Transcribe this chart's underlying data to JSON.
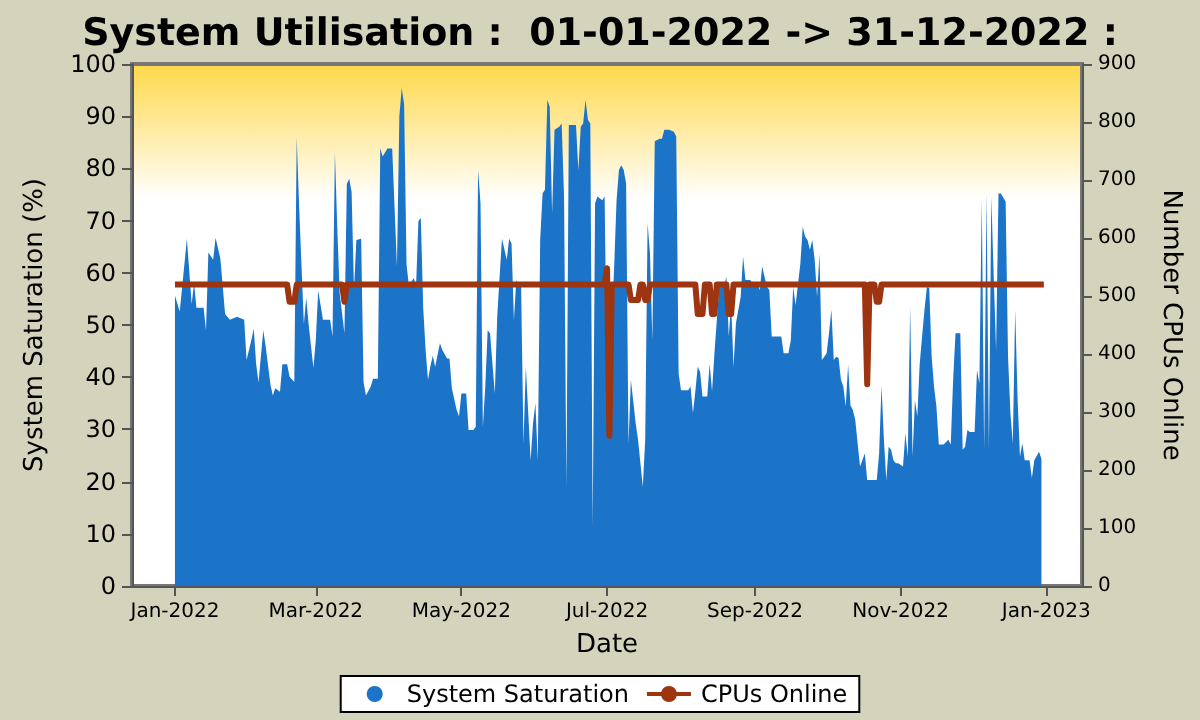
{
  "chart_data": {
    "type": "area",
    "title": "System Utilisation :  01-01-2022 -> 31-12-2022 :",
    "xlabel": "Date",
    "ylabel": "System Saturation (%)",
    "y2label": "Number CPUs Online",
    "xlim": [
      "2021-12-14",
      "2023-01-16"
    ],
    "xticks": [
      {
        "value": "2022-01-01",
        "label": "Jan-2022"
      },
      {
        "value": "2022-03-01",
        "label": "Mar-2022"
      },
      {
        "value": "2022-05-01",
        "label": "May-2022"
      },
      {
        "value": "2022-07-01",
        "label": "Jul-2022"
      },
      {
        "value": "2022-09-01",
        "label": "Sep-2022"
      },
      {
        "value": "2022-11-01",
        "label": "Nov-2022"
      },
      {
        "value": "2023-01-01",
        "label": "Jan-2023"
      }
    ],
    "ylim": [
      0,
      100
    ],
    "yticks": [
      0,
      10,
      20,
      30,
      40,
      50,
      60,
      70,
      80,
      90,
      100
    ],
    "y2lim": [
      0,
      900
    ],
    "y2ticks": [
      0,
      100,
      200,
      300,
      400,
      500,
      600,
      700,
      800,
      900
    ],
    "grid": false,
    "legend": "bottom",
    "marker": "none",
    "line_style": "solid",
    "series": [
      {
        "name": "System Saturation",
        "color": "#1b74c8",
        "x": [
          "2022-01-01",
          "2022-01-03",
          "2022-01-06",
          "2022-01-08",
          "2022-01-09",
          "2022-01-10",
          "2022-01-13",
          "2022-01-14",
          "2022-01-15",
          "2022-01-17",
          "2022-01-18",
          "2022-01-20",
          "2022-01-22",
          "2022-01-24",
          "2022-01-27",
          "2022-01-30",
          "2022-01-31",
          "2022-02-02",
          "2022-02-03",
          "2022-02-04",
          "2022-02-05",
          "2022-02-07",
          "2022-02-08",
          "2022-02-10",
          "2022-02-11",
          "2022-02-12",
          "2022-02-14",
          "2022-02-15",
          "2022-02-17",
          "2022-02-18",
          "2022-02-20",
          "2022-02-21",
          "2022-02-22",
          "2022-02-24",
          "2022-02-25",
          "2022-02-26",
          "2022-02-28",
          "2022-03-01",
          "2022-03-02",
          "2022-03-04",
          "2022-03-07",
          "2022-03-08",
          "2022-03-09",
          "2022-03-10",
          "2022-03-11",
          "2022-03-13",
          "2022-03-14",
          "2022-03-15",
          "2022-03-16",
          "2022-03-17",
          "2022-03-18",
          "2022-03-20",
          "2022-03-21",
          "2022-03-22",
          "2022-03-24",
          "2022-03-25",
          "2022-03-27",
          "2022-03-28",
          "2022-03-29",
          "2022-03-31",
          "2022-04-02",
          "2022-04-04",
          "2022-04-05",
          "2022-04-06",
          "2022-04-07",
          "2022-04-08",
          "2022-04-09",
          "2022-04-11",
          "2022-04-12",
          "2022-04-13",
          "2022-04-14",
          "2022-04-15",
          "2022-04-16",
          "2022-04-17",
          "2022-04-18",
          "2022-04-19",
          "2022-04-20",
          "2022-04-22",
          "2022-04-23",
          "2022-04-25",
          "2022-04-26",
          "2022-04-27",
          "2022-04-29",
          "2022-04-30",
          "2022-05-01",
          "2022-05-03",
          "2022-05-04",
          "2022-05-06",
          "2022-05-07",
          "2022-05-08",
          "2022-05-09",
          "2022-05-10",
          "2022-05-11",
          "2022-05-12",
          "2022-05-13",
          "2022-05-15",
          "2022-05-16",
          "2022-05-17",
          "2022-05-18",
          "2022-05-20",
          "2022-05-21",
          "2022-05-22",
          "2022-05-23",
          "2022-05-24",
          "2022-05-25",
          "2022-05-26",
          "2022-05-27",
          "2022-05-28",
          "2022-05-30",
          "2022-05-31",
          "2022-06-01",
          "2022-06-02",
          "2022-06-03",
          "2022-06-04",
          "2022-06-05",
          "2022-06-06",
          "2022-06-07",
          "2022-06-08",
          "2022-06-09",
          "2022-06-11",
          "2022-06-12",
          "2022-06-13",
          "2022-06-14",
          "2022-06-15",
          "2022-06-18",
          "2022-06-19",
          "2022-06-20",
          "2022-06-21",
          "2022-06-22",
          "2022-06-23",
          "2022-06-24",
          "2022-06-25",
          "2022-06-26",
          "2022-06-27",
          "2022-06-29",
          "2022-06-30",
          "2022-07-01",
          "2022-07-02",
          "2022-07-04",
          "2022-07-05",
          "2022-07-06",
          "2022-07-07",
          "2022-07-08",
          "2022-07-09",
          "2022-07-10",
          "2022-07-11",
          "2022-07-13",
          "2022-07-14",
          "2022-07-15",
          "2022-07-16",
          "2022-07-17",
          "2022-07-18",
          "2022-07-19",
          "2022-07-20",
          "2022-07-21",
          "2022-07-23",
          "2022-07-24",
          "2022-07-25",
          "2022-07-27",
          "2022-07-29",
          "2022-07-30",
          "2022-07-31",
          "2022-08-01",
          "2022-08-03",
          "2022-08-04",
          "2022-08-05",
          "2022-08-06",
          "2022-08-07",
          "2022-08-08",
          "2022-08-09",
          "2022-08-10",
          "2022-08-12",
          "2022-08-13",
          "2022-08-14",
          "2022-08-15",
          "2022-08-17",
          "2022-08-19",
          "2022-08-20",
          "2022-08-21",
          "2022-08-22",
          "2022-08-23",
          "2022-08-24",
          "2022-08-26",
          "2022-08-27",
          "2022-08-28",
          "2022-08-29",
          "2022-08-30",
          "2022-09-01",
          "2022-09-02",
          "2022-09-03",
          "2022-09-04",
          "2022-09-06",
          "2022-09-07",
          "2022-09-08",
          "2022-09-09",
          "2022-09-12",
          "2022-09-13",
          "2022-09-15",
          "2022-09-16",
          "2022-09-17",
          "2022-09-18",
          "2022-09-20",
          "2022-09-21",
          "2022-09-22",
          "2022-09-23",
          "2022-09-24",
          "2022-09-25",
          "2022-09-26",
          "2022-09-27",
          "2022-09-28",
          "2022-09-29",
          "2022-09-30",
          "2022-10-01",
          "2022-10-02",
          "2022-10-03",
          "2022-10-04",
          "2022-10-05",
          "2022-10-06",
          "2022-10-07",
          "2022-10-08",
          "2022-10-09",
          "2022-10-10",
          "2022-10-11",
          "2022-10-12",
          "2022-10-13",
          "2022-10-14",
          "2022-10-15",
          "2022-10-17",
          "2022-10-18",
          "2022-10-20",
          "2022-10-22",
          "2022-10-23",
          "2022-10-24",
          "2022-10-25",
          "2022-10-26",
          "2022-10-27",
          "2022-10-28",
          "2022-10-29",
          "2022-10-30",
          "2022-10-31",
          "2022-11-02",
          "2022-11-03",
          "2022-11-04",
          "2022-11-05",
          "2022-11-06",
          "2022-11-07",
          "2022-11-08",
          "2022-11-09",
          "2022-11-10",
          "2022-11-11",
          "2022-11-12",
          "2022-11-13",
          "2022-11-14",
          "2022-11-15",
          "2022-11-16",
          "2022-11-17",
          "2022-11-19",
          "2022-11-21",
          "2022-11-22",
          "2022-11-23",
          "2022-11-24",
          "2022-11-26",
          "2022-11-27",
          "2022-11-28",
          "2022-11-29",
          "2022-11-30",
          "2022-12-02",
          "2022-12-03",
          "2022-12-04",
          "2022-12-05",
          "2022-12-06",
          "2022-12-07",
          "2022-12-08",
          "2022-12-09",
          "2022-12-10",
          "2022-12-11",
          "2022-12-12",
          "2022-12-13",
          "2022-12-15",
          "2022-12-16",
          "2022-12-17",
          "2022-12-18",
          "2022-12-19",
          "2022-12-20",
          "2022-12-21",
          "2022-12-22",
          "2022-12-23",
          "2022-12-25",
          "2022-12-26",
          "2022-12-27",
          "2022-12-29",
          "2022-12-30"
        ],
        "values": [
          55.6,
          52.6,
          66.5,
          54.0,
          58.0,
          53.3,
          53.3,
          49.0,
          63.9,
          62.5,
          66.7,
          62.8,
          52.1,
          51.0,
          51.6,
          51.0,
          43.3,
          47.1,
          49.3,
          42.6,
          39.0,
          49.0,
          45.9,
          38.6,
          36.5,
          37.9,
          37.2,
          42.5,
          42.5,
          40.1,
          39.1,
          86,
          72.8,
          50.2,
          55.2,
          50.1,
          41.8,
          47.1,
          56.6,
          51.0,
          51.0,
          47.8,
          83.1,
          68.6,
          56.1,
          48.4,
          77.0,
          78.0,
          75.5,
          56.7,
          66.3,
          66.5,
          39.1,
          36.5,
          38.2,
          39.7,
          39.7,
          83.9,
          82.3,
          83.8,
          83.8,
          61.2,
          90.0,
          95.4,
          92.3,
          61.7,
          57.4,
          59.0,
          57.4,
          69.9,
          70.5,
          53.3,
          45.2,
          39.5,
          42.1,
          44.1,
          42.0,
          46.5,
          45.2,
          43.6,
          43.6,
          37.9,
          33.7,
          32.5,
          36.9,
          36.9,
          29.9,
          29.9,
          30.5,
          79.7,
          73.3,
          30.5,
          38.2,
          49.0,
          48.4,
          36.9,
          51.6,
          59.3,
          66.5,
          62.5,
          66.5,
          65.6,
          51.0,
          58.6,
          57.3,
          58.0,
          27.3,
          42.0,
          24.1,
          31.2,
          35.0,
          24.1,
          66.3,
          75.2,
          75.9,
          93.1,
          91.8,
          71.4,
          87.4,
          88.0,
          88.6,
          74.6,
          19.0,
          88.3,
          88.3,
          79.7,
          88.0,
          88.6,
          93.1,
          89.3,
          88.6,
          11.4,
          73.3,
          74.6,
          73.9,
          74.6,
          38.8,
          39.5,
          61.2,
          73.9,
          79.7,
          80.6,
          79.7,
          77.1,
          27.3,
          39.5,
          31.2,
          28.0,
          23.5,
          19.0,
          28.0,
          69.5,
          63.7,
          47.1,
          85.2,
          85.7,
          85.7,
          87.4,
          87.4,
          87.0,
          86.1,
          40.7,
          37.5,
          37.5,
          37.5,
          38.2,
          33.1,
          37.3,
          42.0,
          41.0,
          36.3,
          36.3,
          42.6,
          37.3,
          44.6,
          57.3,
          57.3,
          59.3,
          47.8,
          54.1,
          42.0,
          50.3,
          55.4,
          63.1,
          58.6,
          58.6,
          58.6,
          57.3,
          58.0,
          56.7,
          61.2,
          57.3,
          56.7,
          47.8,
          47.8,
          47.8,
          44.6,
          44.6,
          47.1,
          57.3,
          53.8,
          61.8,
          68.8,
          66.9,
          66.3,
          64.4,
          66.3,
          62.5,
          55.4,
          63.7,
          43.3,
          43.9,
          44.6,
          48.4,
          52.9,
          43.3,
          43.9,
          43.7,
          39.5,
          38.2,
          34.4,
          42.4,
          34.6,
          33.7,
          31.8,
          27.3,
          22.9,
          25.4,
          20.3,
          20.3,
          20.3,
          25.4,
          38.4,
          28.0,
          20.3,
          26.7,
          26.1,
          24.1,
          23.5,
          23.5,
          22.9,
          29.2,
          24.8,
          53.5,
          24.8,
          35.6,
          32.5,
          42.6,
          47.8,
          52.9,
          57.3,
          57.1,
          43.9,
          38.2,
          34.4,
          27.1,
          27.1,
          28.0,
          27.1,
          39.5,
          48.4,
          48.4,
          26.1,
          26.7,
          29.9,
          29.5,
          29.5,
          41.4,
          38.8,
          73.9,
          26.1,
          75.2,
          26.1,
          74.6,
          59.3,
          45.2,
          75.2,
          75.2,
          73.6,
          43.9,
          33.1,
          27.3,
          52.9,
          35.9,
          24.8,
          27.3,
          24.1,
          24.1,
          20.7,
          24.1,
          25.7,
          24.4
        ]
      },
      {
        "name": "CPUs Online",
        "type": "line",
        "axis": "y2",
        "color": "#9c3510",
        "x": [
          "2022-01-01",
          "2022-02-17",
          "2022-02-18",
          "2022-02-20",
          "2022-02-21",
          "2022-03-12",
          "2022-03-13",
          "2022-03-14",
          "2022-06-30",
          "2022-07-01",
          "2022-07-02",
          "2022-07-03",
          "2022-07-10",
          "2022-07-11",
          "2022-07-14",
          "2022-07-15",
          "2022-07-16",
          "2022-07-17",
          "2022-07-18",
          "2022-07-19",
          "2022-08-07",
          "2022-08-08",
          "2022-08-10",
          "2022-08-11",
          "2022-08-13",
          "2022-08-14",
          "2022-08-15",
          "2022-08-16",
          "2022-08-20",
          "2022-08-21",
          "2022-08-22",
          "2022-08-23",
          "2022-10-17",
          "2022-10-18",
          "2022-10-19",
          "2022-10-21",
          "2022-10-22",
          "2022-10-23",
          "2022-10-24",
          "2022-12-31"
        ],
        "values": [
          520,
          520,
          490,
          490,
          520,
          520,
          490,
          520,
          520,
          548,
          259,
          520,
          520,
          493,
          493,
          520,
          520,
          493,
          493,
          520,
          520,
          469,
          469,
          520,
          520,
          469,
          469,
          520,
          520,
          469,
          469,
          520,
          520,
          348,
          520,
          520,
          490,
          490,
          520,
          520
        ]
      }
    ]
  }
}
